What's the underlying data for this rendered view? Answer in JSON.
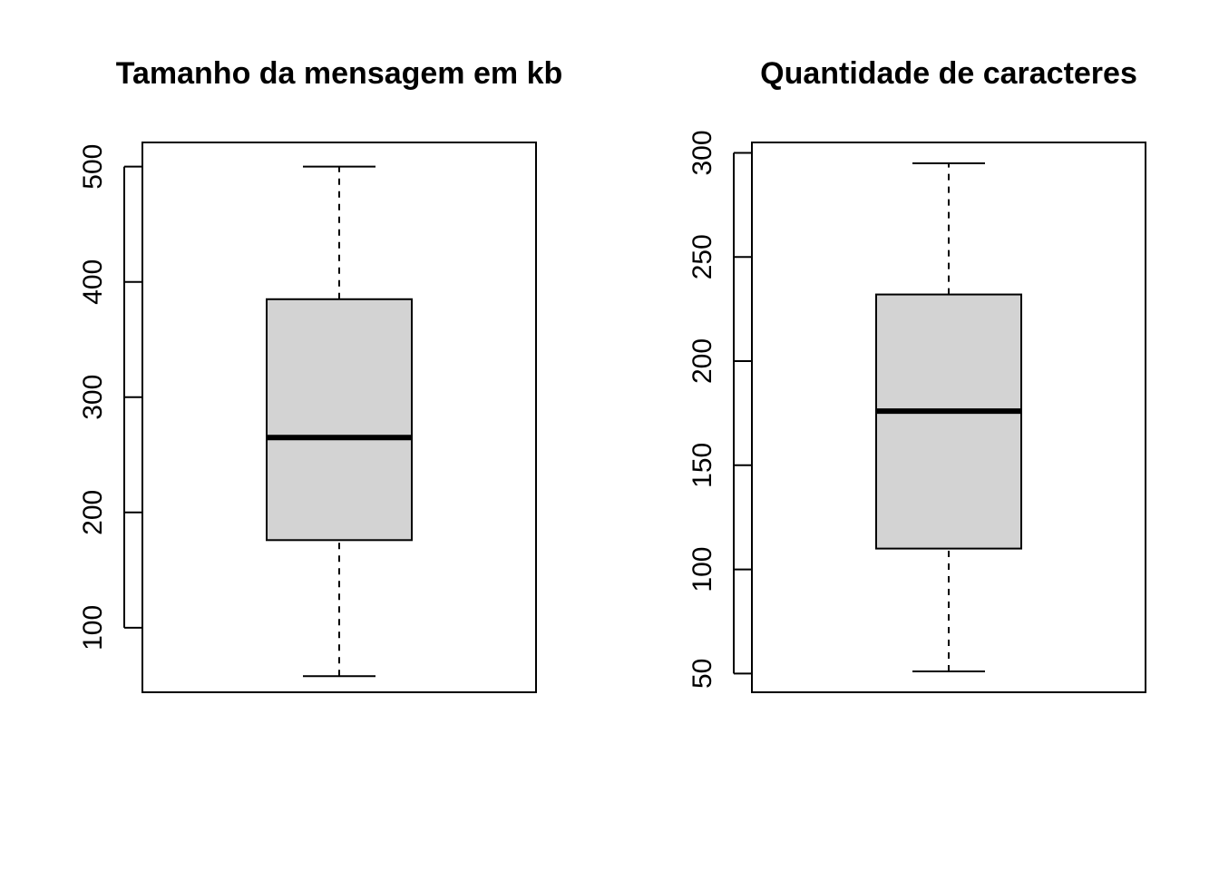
{
  "chart_data": [
    {
      "type": "box",
      "title": "Tamanho da mensagem em kb",
      "ylim": [
        44,
        521
      ],
      "yticks": [
        100,
        200,
        300,
        400,
        500
      ],
      "box": {
        "whisker_low": 58,
        "q1": 176,
        "median": 265,
        "q3": 385,
        "whisker_high": 500
      },
      "box_fill": "#d3d3d3",
      "grid": false
    },
    {
      "type": "box",
      "title": "Quantidade de caracteres",
      "ylim": [
        41,
        305
      ],
      "yticks": [
        50,
        100,
        150,
        200,
        250,
        300
      ],
      "box": {
        "whisker_low": 51,
        "q1": 110,
        "median": 176,
        "q3": 232,
        "whisker_high": 295
      },
      "box_fill": "#d3d3d3",
      "grid": false
    }
  ]
}
